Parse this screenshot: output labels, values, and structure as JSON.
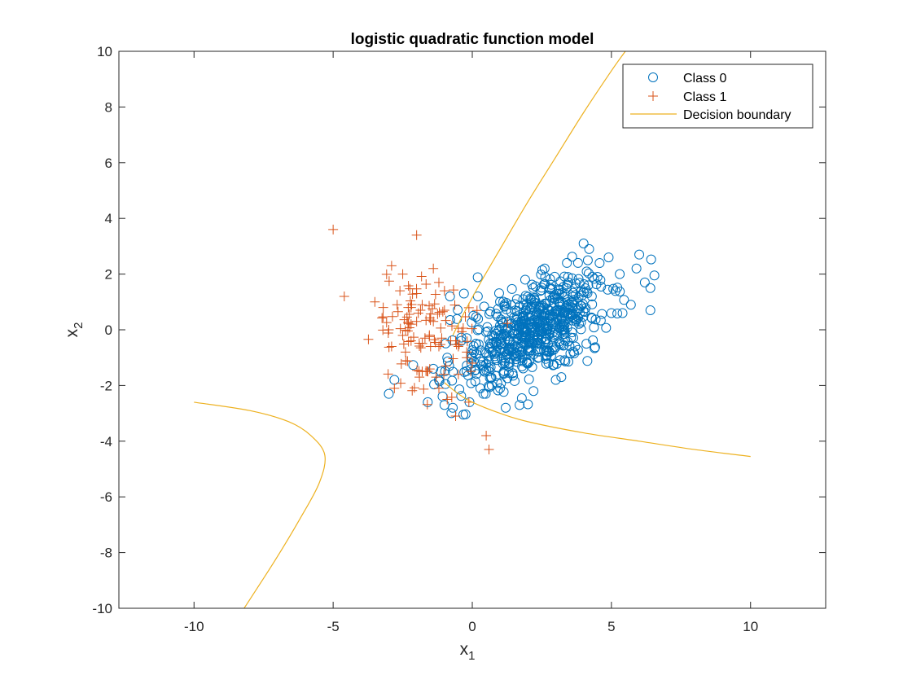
{
  "chart_data": {
    "type": "scatter",
    "title": "logistic quadratic function model",
    "xlabel": "x",
    "xlabel_sub": "1",
    "ylabel": "x",
    "ylabel_sub": "2",
    "xlim": [
      -12.7,
      12.7
    ],
    "ylim": [
      -10,
      10
    ],
    "xticks": [
      -10,
      -5,
      0,
      5,
      10
    ],
    "yticks": [
      -10,
      -8,
      -6,
      -4,
      -2,
      0,
      2,
      4,
      6,
      8,
      10
    ],
    "grid": false,
    "legend_position": "top-right",
    "colors": {
      "class0": "#0072BD",
      "class1": "#D95319",
      "boundary": "#EDB120"
    },
    "series": [
      {
        "name": "Class 0",
        "marker": "circle",
        "cluster": {
          "center": [
            2.2,
            0.0
          ],
          "spread": [
            1.3,
            1.0
          ],
          "correlation": 0.6,
          "count": 620
        },
        "points": [
          [
            -3.0,
            -2.3
          ],
          [
            -2.8,
            -1.8
          ],
          [
            -1.6,
            -2.6
          ],
          [
            -1.0,
            -2.7
          ],
          [
            -0.7,
            -2.8
          ],
          [
            -0.1,
            -2.6
          ],
          [
            0.4,
            -2.3
          ],
          [
            1.2,
            -2.8
          ],
          [
            1.7,
            -2.7
          ],
          [
            2.2,
            -2.2
          ],
          [
            -0.8,
            1.2
          ],
          [
            -0.3,
            1.3
          ],
          [
            0.2,
            1.2
          ],
          [
            4.0,
            3.1
          ],
          [
            4.2,
            2.9
          ],
          [
            3.8,
            2.4
          ],
          [
            4.9,
            2.6
          ],
          [
            6.0,
            2.7
          ],
          [
            5.9,
            2.2
          ],
          [
            6.2,
            1.7
          ],
          [
            6.4,
            1.5
          ],
          [
            5.7,
            0.9
          ],
          [
            6.4,
            0.7
          ],
          [
            5.4,
            0.6
          ],
          [
            5.0,
            0.6
          ],
          [
            4.1,
            -0.5
          ],
          [
            3.7,
            -0.6
          ],
          [
            3.2,
            -1.7
          ],
          [
            3.0,
            -1.8
          ],
          [
            -1.2,
            -1.8
          ],
          [
            -0.9,
            -1.0
          ],
          [
            -0.4,
            -0.4
          ],
          [
            -0.2,
            -0.3
          ],
          [
            -1.4,
            -1.4
          ],
          [
            2.6,
            2.2
          ],
          [
            1.9,
            1.8
          ],
          [
            3.4,
            2.4
          ],
          [
            4.5,
            1.9
          ],
          [
            0.7,
            -2.0
          ],
          [
            1.0,
            -2.1
          ]
        ]
      },
      {
        "name": "Class 1",
        "marker": "plus",
        "cluster": {
          "center": [
            -1.8,
            0.0
          ],
          "spread": [
            0.9,
            1.0
          ],
          "correlation": -0.1,
          "count": 90
        },
        "points": [
          [
            -5.0,
            3.6
          ],
          [
            -2.0,
            3.4
          ],
          [
            -4.6,
            1.2
          ],
          [
            -3.5,
            1.0
          ],
          [
            -3.2,
            0.8
          ],
          [
            -2.9,
            2.3
          ],
          [
            -2.5,
            2.0
          ],
          [
            -1.4,
            2.2
          ],
          [
            -1.2,
            1.7
          ],
          [
            -1.0,
            1.4
          ],
          [
            -2.0,
            1.3
          ],
          [
            -2.6,
            1.4
          ],
          [
            -2.7,
            0.9
          ],
          [
            -2.3,
            0.8
          ],
          [
            -2.2,
            0.8
          ],
          [
            -2.0,
            0.3
          ],
          [
            -3.0,
            0.0
          ],
          [
            -2.9,
            -0.6
          ],
          [
            -2.5,
            -0.2
          ],
          [
            -2.2,
            -0.4
          ],
          [
            -1.7,
            -0.3
          ],
          [
            -1.5,
            -0.6
          ],
          [
            -1.4,
            0.3
          ],
          [
            -1.2,
            -0.6
          ],
          [
            -1.0,
            0.7
          ],
          [
            -0.6,
            -0.4
          ],
          [
            -0.5,
            -0.6
          ],
          [
            -0.2,
            -1.0
          ],
          [
            0.0,
            -1.2
          ],
          [
            -0.2,
            -0.8
          ],
          [
            -1.8,
            -1.5
          ],
          [
            -1.9,
            -1.7
          ],
          [
            -1.6,
            -1.5
          ],
          [
            -1.3,
            -1.7
          ],
          [
            -2.8,
            -2.1
          ],
          [
            -1.2,
            -2.1
          ],
          [
            -0.9,
            -2.5
          ],
          [
            -0.5,
            -1.6
          ],
          [
            -0.6,
            -3.1
          ],
          [
            0.5,
            -3.8
          ],
          [
            0.6,
            -4.3
          ],
          [
            -2.2,
            0.2
          ],
          [
            -2.4,
            -0.8
          ],
          [
            -1.1,
            -0.3
          ],
          [
            -1.8,
            0.9
          ]
        ]
      },
      {
        "name": "Decision boundary",
        "marker": "line",
        "curves": [
          [
            [
              -0.7,
              -0.2
            ],
            [
              -0.3,
              0.6
            ],
            [
              0.3,
              1.7
            ],
            [
              1.0,
              2.9
            ],
            [
              2.0,
              4.6
            ],
            [
              3.0,
              6.2
            ],
            [
              4.0,
              7.8
            ],
            [
              5.0,
              9.3
            ],
            [
              5.5,
              10.0
            ]
          ],
          [
            [
              -1.0,
              -1.9
            ],
            [
              -0.5,
              -2.3
            ],
            [
              0.0,
              -2.6
            ],
            [
              1.0,
              -3.0
            ],
            [
              2.0,
              -3.3
            ],
            [
              4.0,
              -3.7
            ],
            [
              6.0,
              -4.0
            ],
            [
              8.0,
              -4.3
            ],
            [
              10.0,
              -4.55
            ]
          ],
          [
            [
              -10.0,
              -2.6
            ],
            [
              -8.0,
              -2.9
            ],
            [
              -6.6,
              -3.3
            ],
            [
              -5.8,
              -3.8
            ],
            [
              -5.3,
              -4.5
            ],
            [
              -5.5,
              -5.5
            ],
            [
              -6.2,
              -6.8
            ],
            [
              -7.1,
              -8.3
            ],
            [
              -8.2,
              -10.0
            ]
          ]
        ]
      }
    ]
  }
}
